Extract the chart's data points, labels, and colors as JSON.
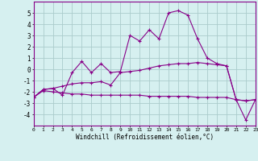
{
  "x": [
    0,
    1,
    2,
    3,
    4,
    5,
    6,
    7,
    8,
    9,
    10,
    11,
    12,
    13,
    14,
    15,
    16,
    17,
    18,
    19,
    20,
    21,
    22,
    23
  ],
  "line1": [
    -2.5,
    -1.8,
    -1.7,
    -2.3,
    -0.3,
    0.7,
    -0.3,
    0.5,
    -0.3,
    -0.2,
    3.0,
    2.5,
    3.5,
    2.7,
    5.0,
    5.2,
    4.8,
    2.7,
    1.0,
    0.5,
    0.3,
    -2.7,
    -4.5,
    -2.7
  ],
  "line2": [
    -2.5,
    -1.8,
    -1.7,
    -1.5,
    -1.3,
    -1.2,
    -1.2,
    -1.1,
    -1.4,
    -0.3,
    -0.2,
    -0.1,
    0.1,
    0.3,
    0.4,
    0.5,
    0.5,
    0.6,
    0.5,
    0.4,
    0.3,
    -2.7,
    -2.8,
    -2.7
  ],
  "line3": [
    -2.5,
    -1.9,
    -2.0,
    -2.1,
    -2.2,
    -2.2,
    -2.3,
    -2.3,
    -2.3,
    -2.3,
    -2.3,
    -2.3,
    -2.4,
    -2.4,
    -2.4,
    -2.4,
    -2.4,
    -2.5,
    -2.5,
    -2.5,
    -2.5,
    -2.7,
    -2.8,
    -2.7
  ],
  "line_color": "#880088",
  "bg_color": "#d6f0f0",
  "grid_color": "#aacccc",
  "xlabel": "Windchill (Refroidissement éolien,°C)",
  "ylim": [
    -5,
    6
  ],
  "xlim": [
    0,
    23
  ],
  "yticks": [
    -4,
    -3,
    -2,
    -1,
    0,
    1,
    2,
    3,
    4,
    5
  ],
  "xticks": [
    0,
    1,
    2,
    3,
    4,
    5,
    6,
    7,
    8,
    9,
    10,
    11,
    12,
    13,
    14,
    15,
    16,
    17,
    18,
    19,
    20,
    21,
    22,
    23
  ]
}
